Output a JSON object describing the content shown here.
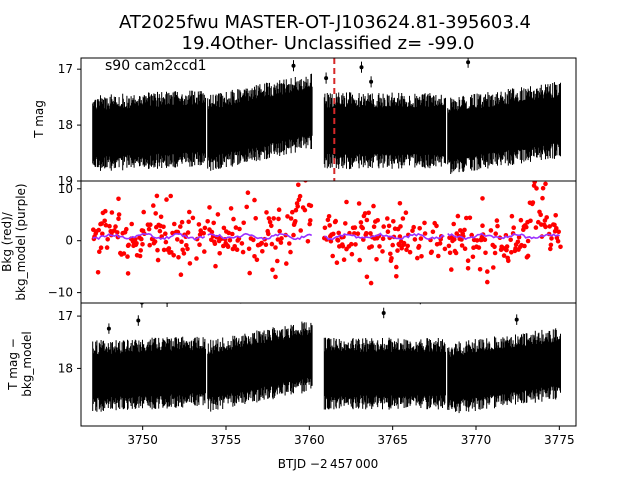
{
  "figure": {
    "title_line1": "AT2025fwu  MASTER-OT-J103624.81-395603.4",
    "title_line2": "19.4Other- Unclassified z= -99.0",
    "xlabel": "BTJD −2 457 000",
    "annotation": "s90 cam2ccd1"
  },
  "colors": {
    "points": "#000000",
    "bkg": "#ff0000",
    "model": "#9b30ff",
    "marker": "#d62728"
  },
  "chart_data": [
    {
      "id": "top",
      "type": "scatter",
      "ylabel": "T mag",
      "ylabel_lines": [
        "T mag"
      ],
      "xlim": [
        3746.3,
        3776.0
      ],
      "ylim": [
        19.0,
        16.8
      ],
      "inverted_y": true,
      "yticks": [
        17,
        18,
        19
      ],
      "ytick_labels": [
        "17",
        "18",
        "19"
      ],
      "segments": [
        {
          "x_start": 3747.0,
          "x_end": 3753.8,
          "center_start": 18.15,
          "center_end": 18.05,
          "spread": 0.55
        },
        {
          "x_start": 3753.9,
          "x_end": 3760.2,
          "center_start": 18.15,
          "center_end": 17.75,
          "spread": 0.55
        },
        {
          "x_start": 3760.9,
          "x_end": 3768.2,
          "center_start": 18.1,
          "center_end": 18.1,
          "spread": 0.55
        },
        {
          "x_start": 3768.3,
          "x_end": 3775.1,
          "center_start": 18.2,
          "center_end": 17.9,
          "spread": 0.55
        }
      ],
      "vline_x": 3761.5
    },
    {
      "id": "middle",
      "type": "scatter",
      "ylabel": "Bkg (red)/ bkg_model (purple)",
      "ylabel_lines": [
        "Bkg (red)/",
        "bkg_model (purple)"
      ],
      "xlim": [
        3746.3,
        3776.0
      ],
      "ylim": [
        -12.0,
        11.5
      ],
      "inverted_y": false,
      "yticks": [
        -10,
        0,
        10
      ],
      "ytick_labels": [
        "−10",
        "0",
        "10"
      ],
      "segments": [
        {
          "x_start": 3747.0,
          "x_end": 3753.8,
          "center_start": 0.5,
          "center_end": 0.5,
          "spread": 3.5
        },
        {
          "x_start": 3753.9,
          "x_end": 3760.2,
          "center_start": 0.5,
          "center_end": 1.5,
          "spread": 3.5
        },
        {
          "x_start": 3760.9,
          "x_end": 3768.2,
          "center_start": 0.5,
          "center_end": 0.3,
          "spread": 3.5
        },
        {
          "x_start": 3768.3,
          "x_end": 3775.1,
          "center_start": 0.3,
          "center_end": 0.5,
          "spread": 3.5
        }
      ],
      "bumps": [
        {
          "x": 3759.6,
          "amplitude": 8.0
        },
        {
          "x": 3773.6,
          "amplitude": 9.0
        }
      ],
      "model_level": 0.8
    },
    {
      "id": "bottom",
      "type": "scatter",
      "ylabel": "T mag − bkg_model",
      "ylabel_lines": [
        "T mag −",
        "bkg_model"
      ],
      "xlim": [
        3746.3,
        3776.0
      ],
      "ylim": [
        19.1,
        16.75
      ],
      "inverted_y": true,
      "yticks": [
        17,
        18
      ],
      "ytick_labels": [
        "17",
        "18"
      ],
      "xticks": [
        3750,
        3755,
        3760,
        3765,
        3770,
        3775
      ],
      "xtick_labels": [
        "3750",
        "3755",
        "3760",
        "3765",
        "3770",
        "3775"
      ],
      "segments": [
        {
          "x_start": 3747.0,
          "x_end": 3753.8,
          "center_start": 18.15,
          "center_end": 18.05,
          "spread": 0.55
        },
        {
          "x_start": 3753.9,
          "x_end": 3760.2,
          "center_start": 18.15,
          "center_end": 17.75,
          "spread": 0.55
        },
        {
          "x_start": 3760.9,
          "x_end": 3768.2,
          "center_start": 18.1,
          "center_end": 18.1,
          "spread": 0.55
        },
        {
          "x_start": 3768.3,
          "x_end": 3775.1,
          "center_start": 18.2,
          "center_end": 17.9,
          "spread": 0.55
        }
      ]
    }
  ]
}
